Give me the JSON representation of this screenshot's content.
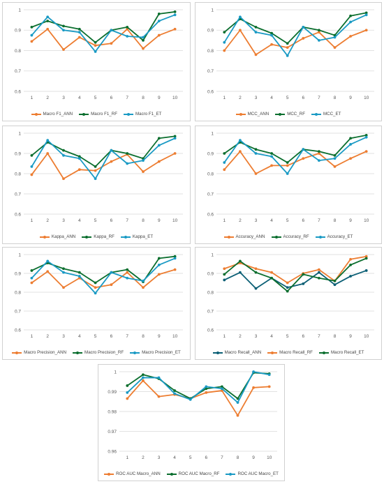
{
  "colors": {
    "series": [
      "#ED7D31",
      "#0B6E2E",
      "#1A9AC4"
    ],
    "recall_panel": [
      "#0B5F75",
      "#ED7D31",
      "#0B6E2E"
    ]
  },
  "chart_data": [
    {
      "type": "line",
      "x": [
        "1",
        "2",
        "3",
        "4",
        "5",
        "6",
        "7",
        "8",
        "9",
        "10"
      ],
      "ylim": [
        0.6,
        1
      ],
      "yticks": [
        "0.6",
        "0.7",
        "0.8",
        "0.9",
        "1"
      ],
      "series": [
        {
          "name": "Macro F1_ANN",
          "values": [
            0.845,
            0.905,
            0.805,
            0.865,
            0.825,
            0.835,
            0.905,
            0.81,
            0.875,
            0.905
          ]
        },
        {
          "name": "Macro F1_RF",
          "values": [
            0.915,
            0.945,
            0.92,
            0.905,
            0.84,
            0.9,
            0.915,
            0.85,
            0.98,
            0.99
          ]
        },
        {
          "name": "Macro F1_ET",
          "values": [
            0.875,
            0.965,
            0.9,
            0.89,
            0.795,
            0.9,
            0.87,
            0.865,
            0.945,
            0.975
          ]
        }
      ]
    },
    {
      "type": "line",
      "x": [
        "1",
        "2",
        "3",
        "4",
        "5",
        "6",
        "7",
        "8",
        "9",
        "10"
      ],
      "ylim": [
        0.6,
        1
      ],
      "yticks": [
        "0.6",
        "0.7",
        "0.8",
        "0.9",
        "1"
      ],
      "series": [
        {
          "name": "MCC_ANN",
          "values": [
            0.8,
            0.9,
            0.78,
            0.83,
            0.815,
            0.86,
            0.89,
            0.815,
            0.87,
            0.9
          ]
        },
        {
          "name": "MCC_RF",
          "values": [
            0.89,
            0.955,
            0.915,
            0.885,
            0.835,
            0.915,
            0.9,
            0.875,
            0.97,
            0.985
          ]
        },
        {
          "name": "MCC_ET",
          "values": [
            0.84,
            0.965,
            0.89,
            0.875,
            0.775,
            0.915,
            0.85,
            0.865,
            0.94,
            0.975
          ]
        }
      ]
    },
    {
      "type": "line",
      "x": [
        "1",
        "2",
        "3",
        "4",
        "5",
        "6",
        "7",
        "8",
        "9",
        "10"
      ],
      "ylim": [
        0.6,
        1
      ],
      "yticks": [
        "0.6",
        "0.7",
        "0.8",
        "0.9",
        "1"
      ],
      "series": [
        {
          "name": "Kappa_ANN",
          "values": [
            0.795,
            0.9,
            0.775,
            0.82,
            0.815,
            0.86,
            0.895,
            0.81,
            0.86,
            0.9
          ]
        },
        {
          "name": "Kappa_RF",
          "values": [
            0.89,
            0.955,
            0.915,
            0.885,
            0.835,
            0.915,
            0.9,
            0.875,
            0.975,
            0.985
          ]
        },
        {
          "name": "Kappa_ET",
          "values": [
            0.835,
            0.965,
            0.89,
            0.875,
            0.775,
            0.915,
            0.85,
            0.865,
            0.94,
            0.975
          ]
        }
      ]
    },
    {
      "type": "line",
      "x": [
        "1",
        "2",
        "3",
        "4",
        "5",
        "6",
        "7",
        "8",
        "9",
        "10"
      ],
      "ylim": [
        0.6,
        1
      ],
      "yticks": [
        "0.6",
        "0.7",
        "0.8",
        "0.9",
        "1"
      ],
      "series": [
        {
          "name": "Accuracy_ANN",
          "values": [
            0.82,
            0.91,
            0.8,
            0.84,
            0.84,
            0.875,
            0.9,
            0.835,
            0.875,
            0.91
          ]
        },
        {
          "name": "Accuracy_RF",
          "values": [
            0.9,
            0.955,
            0.92,
            0.9,
            0.855,
            0.92,
            0.91,
            0.89,
            0.975,
            0.99
          ]
        },
        {
          "name": "Accuracy_ET",
          "values": [
            0.855,
            0.965,
            0.9,
            0.885,
            0.8,
            0.92,
            0.865,
            0.875,
            0.945,
            0.98
          ]
        }
      ]
    },
    {
      "type": "line",
      "x": [
        "1",
        "2",
        "3",
        "4",
        "5",
        "6",
        "7",
        "8",
        "9",
        "10"
      ],
      "ylim": [
        0.6,
        1
      ],
      "yticks": [
        "0.6",
        "0.7",
        "0.8",
        "0.9",
        "1"
      ],
      "series": [
        {
          "name": "Macro Precision_ANN",
          "values": [
            0.85,
            0.91,
            0.825,
            0.875,
            0.825,
            0.84,
            0.905,
            0.825,
            0.895,
            0.92
          ]
        },
        {
          "name": "Macro Precision_RF",
          "values": [
            0.915,
            0.955,
            0.925,
            0.905,
            0.85,
            0.905,
            0.92,
            0.855,
            0.98,
            0.99
          ]
        },
        {
          "name": "Macro Precision_ET",
          "values": [
            0.875,
            0.965,
            0.905,
            0.885,
            0.795,
            0.905,
            0.875,
            0.86,
            0.945,
            0.98
          ]
        }
      ]
    },
    {
      "type": "line",
      "x": [
        "1",
        "2",
        "3",
        "4",
        "5",
        "6",
        "7",
        "8",
        "9",
        "10"
      ],
      "ylim": [
        0.6,
        1
      ],
      "yticks": [
        "0.6",
        "0.7",
        "0.8",
        "0.9",
        "1"
      ],
      "series": [
        {
          "name": "Macro Recall_ANN",
          "values": [
            0.865,
            0.905,
            0.82,
            0.875,
            0.825,
            0.845,
            0.905,
            0.84,
            0.885,
            0.915
          ]
        },
        {
          "name": "Macro Recall_RF",
          "values": [
            0.925,
            0.955,
            0.925,
            0.905,
            0.85,
            0.9,
            0.92,
            0.86,
            0.975,
            0.99
          ]
        },
        {
          "name": "Macro Recall_ET",
          "values": [
            0.895,
            0.965,
            0.905,
            0.875,
            0.805,
            0.895,
            0.875,
            0.86,
            0.945,
            0.98
          ]
        }
      ]
    },
    {
      "type": "line",
      "x": [
        "1",
        "2",
        "3",
        "4",
        "5",
        "6",
        "7",
        "8",
        "9",
        "10"
      ],
      "ylim": [
        0.96,
        1
      ],
      "yticks": [
        "0.96",
        "0.97",
        "0.98",
        "0.99",
        "1"
      ],
      "series": [
        {
          "name": "ROC AUC Macro_ANN",
          "values": [
            0.9865,
            0.9955,
            0.9875,
            0.9885,
            0.9865,
            0.9895,
            0.9905,
            0.978,
            0.992,
            0.9925
          ]
        },
        {
          "name": "ROC AUC Macro_RF",
          "values": [
            0.993,
            0.9985,
            0.9965,
            0.9905,
            0.9865,
            0.9915,
            0.9925,
            0.9865,
            0.9995,
            0.999
          ]
        },
        {
          "name": "ROC AUC Macro_ET",
          "values": [
            0.9895,
            0.997,
            0.997,
            0.989,
            0.986,
            0.9925,
            0.9915,
            0.9845,
            1.0,
            0.9985
          ]
        }
      ]
    }
  ]
}
